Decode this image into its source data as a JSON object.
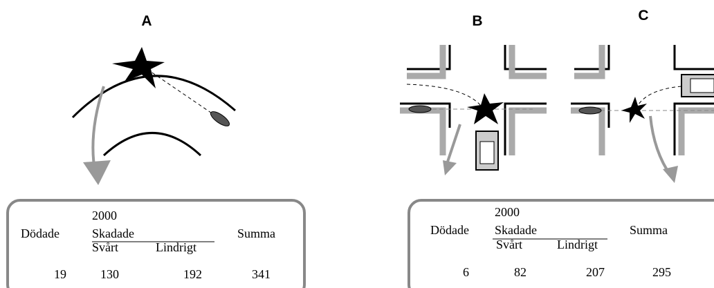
{
  "panels": [
    {
      "label": "A"
    },
    {
      "label": "B"
    },
    {
      "label": "C"
    }
  ],
  "tables": [
    {
      "year": "2000",
      "killed": "Dödade",
      "injured": "Skadade",
      "severe": "Svårt",
      "minor": "Lindrigt",
      "total": "Summa",
      "values": [
        "19",
        "130",
        "192",
        "341"
      ]
    },
    {
      "year": "2000",
      "killed": "Dödade",
      "injured": "Skadade",
      "severe": "Svårt",
      "minor": "Lindrigt",
      "total": "Summa",
      "values": [
        "6",
        "82",
        "207",
        "295"
      ]
    }
  ]
}
